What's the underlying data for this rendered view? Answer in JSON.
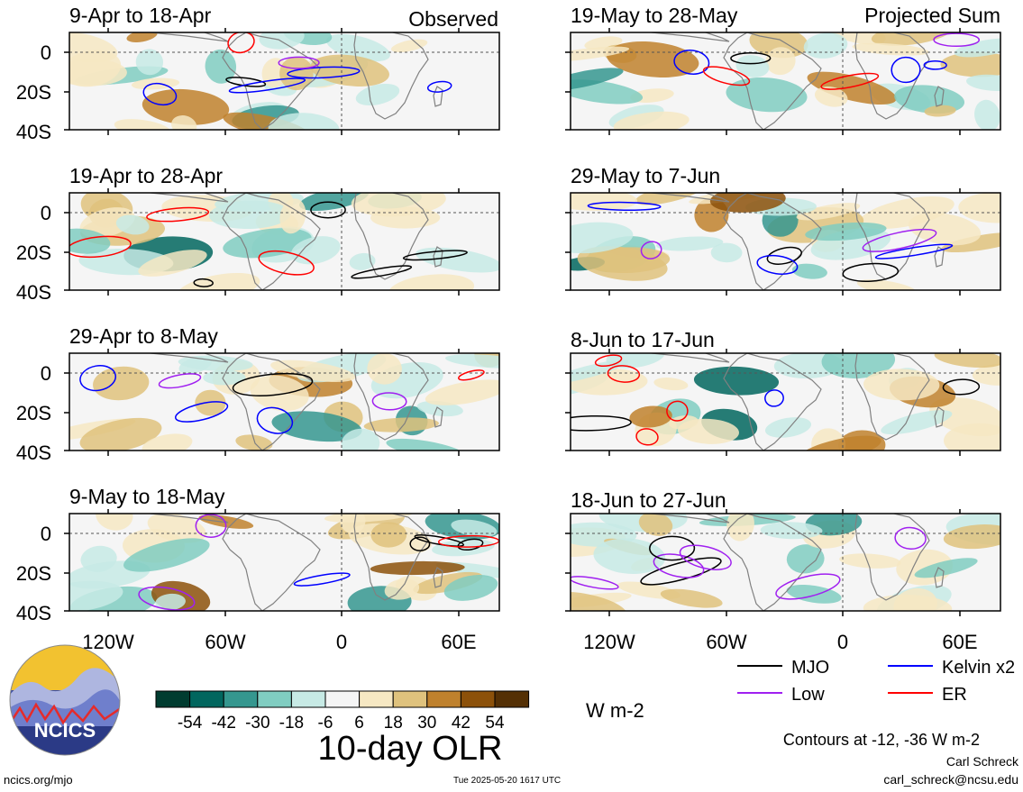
{
  "headers": {
    "left": "Observed",
    "right": "Projected Sum"
  },
  "panels": [
    {
      "title": "9-Apr to 18-Apr"
    },
    {
      "title": "19-Apr to 28-Apr"
    },
    {
      "title": "29-Apr to 8-May"
    },
    {
      "title": "9-May to 18-May"
    },
    {
      "title": "19-May to 28-May"
    },
    {
      "title": "29-May to 7-Jun"
    },
    {
      "title": "8-Jun to 17-Jun"
    },
    {
      "title": "18-Jun to 27-Jun"
    }
  ],
  "lat_ticks": [
    "0",
    "20S",
    "40S"
  ],
  "lon_ticks": [
    "120W",
    "60W",
    "0",
    "60E"
  ],
  "colorbar": {
    "labels": [
      "-54",
      "-42",
      "-30",
      "-18",
      "-6",
      "6",
      "18",
      "30",
      "42",
      "54"
    ],
    "colors": [
      "#003c30",
      "#01665e",
      "#35978f",
      "#80cdc1",
      "#c7eae5",
      "#f5f5f5",
      "#f6e8c3",
      "#dfc27d",
      "#bf812d",
      "#8c510a",
      "#543005"
    ],
    "units": "W m-2",
    "title": "10-day OLR"
  },
  "legend": {
    "items": [
      {
        "label": "MJO",
        "color": "#000000"
      },
      {
        "label": "Kelvin x2",
        "color": "#0000ff"
      },
      {
        "label": "Low",
        "color": "#a020f0"
      },
      {
        "label": "ER",
        "color": "#ff0000"
      }
    ],
    "contours_note": "Contours at -12, -36 W m-2"
  },
  "logo": {
    "text": "NCICS"
  },
  "footer": {
    "url": "ncics.org/mjo",
    "timestamp": "Tue 2025-05-20 1617 UTC",
    "author": "Carl Schreck",
    "email": "carl_schreck@ncsu.edu"
  }
}
